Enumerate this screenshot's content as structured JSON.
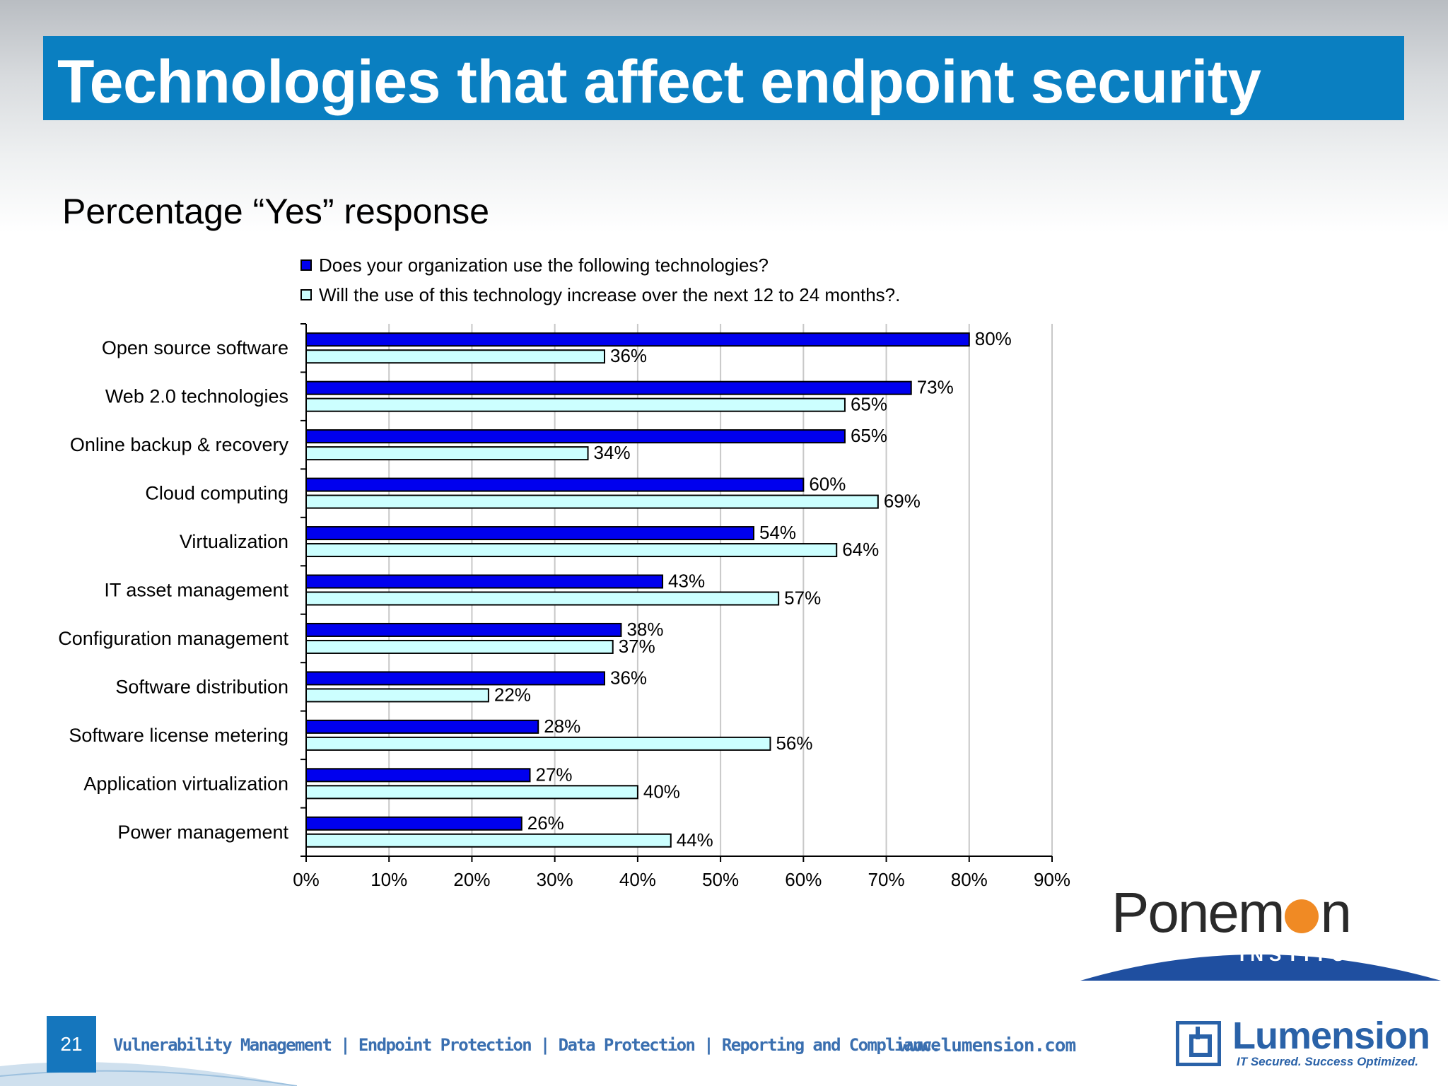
{
  "slide": {
    "title": "Technologies that affect endpoint security",
    "subtitle": "Percentage “Yes” response",
    "page_number": "21"
  },
  "footer": {
    "links": "Vulnerability Management | Endpoint Protection | Data Protection | Reporting and Compliance",
    "url": "www.lumension.com"
  },
  "logos": {
    "ponemon": {
      "name_left": "Ponem",
      "name_right": "n",
      "subtitle": "INSTITUTE",
      "accent_color": "#f08a24",
      "swoosh_color": "#1f4fa0"
    },
    "lumension": {
      "name": "Lumension",
      "tagline": "IT Secured. Success Optimized.",
      "color": "#2a62a8"
    }
  },
  "colors": {
    "title_bar": "#0a7fc1",
    "series_1": "#0000ee",
    "series_2": "#ccffff"
  },
  "chart_data": {
    "type": "bar",
    "orientation": "horizontal",
    "categories": [
      "Open source software",
      "Web 2.0 technologies",
      "Online backup & recovery",
      "Cloud computing",
      "Virtualization",
      "IT asset management",
      "Configuration management",
      "Software distribution",
      "Software license metering",
      "Application virtualization",
      "Power management"
    ],
    "series": [
      {
        "name": "Does your organization use the following technologies?",
        "color": "#0000ee",
        "values": [
          80,
          73,
          65,
          60,
          54,
          43,
          38,
          36,
          28,
          27,
          26
        ]
      },
      {
        "name": "Will the use of this technology increase over the next 12 to 24 months?.",
        "color": "#ccffff",
        "values": [
          36,
          65,
          34,
          69,
          64,
          57,
          37,
          22,
          56,
          40,
          44
        ]
      }
    ],
    "value_suffix": "%",
    "xlim": [
      0,
      90
    ],
    "x_ticks": [
      "0%",
      "10%",
      "20%",
      "30%",
      "40%",
      "50%",
      "60%",
      "70%",
      "80%",
      "90%"
    ],
    "grid": true,
    "legend_position": "top"
  }
}
